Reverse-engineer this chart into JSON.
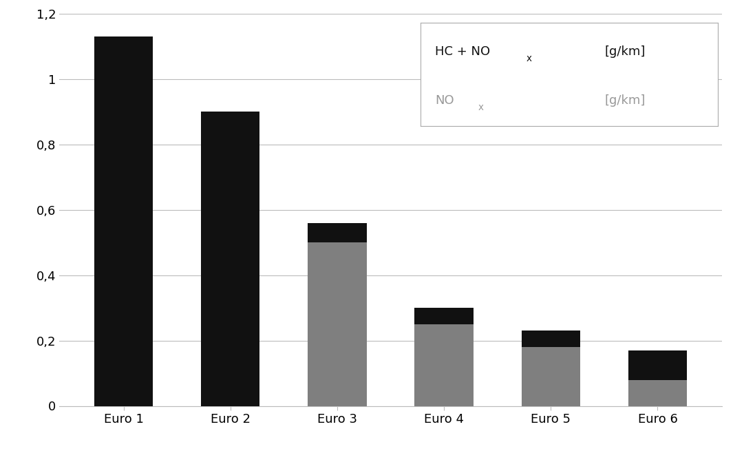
{
  "categories": [
    "Euro 1",
    "Euro 2",
    "Euro 3",
    "Euro 4",
    "Euro 5",
    "Euro 6"
  ],
  "hc_nox_total": [
    1.13,
    0.9,
    0.56,
    0.3,
    0.23,
    0.17
  ],
  "nox_values": [
    0.0,
    0.0,
    0.5,
    0.25,
    0.18,
    0.08
  ],
  "color_black": "#111111",
  "color_gray": "#7f7f7f",
  "ylim": [
    0,
    1.2
  ],
  "yticks": [
    0,
    0.2,
    0.4,
    0.6,
    0.8,
    1.0,
    1.2
  ],
  "ytick_labels": [
    "0",
    "0,2",
    "0,4",
    "0,6",
    "0,8",
    "1",
    "1,2"
  ],
  "background_color": "#ffffff",
  "bar_width": 0.55,
  "legend_fontsize": 13,
  "tick_fontsize": 13,
  "xlabel_fontsize": 13,
  "legend_color_1": "#111111",
  "legend_color_2": "#999999"
}
